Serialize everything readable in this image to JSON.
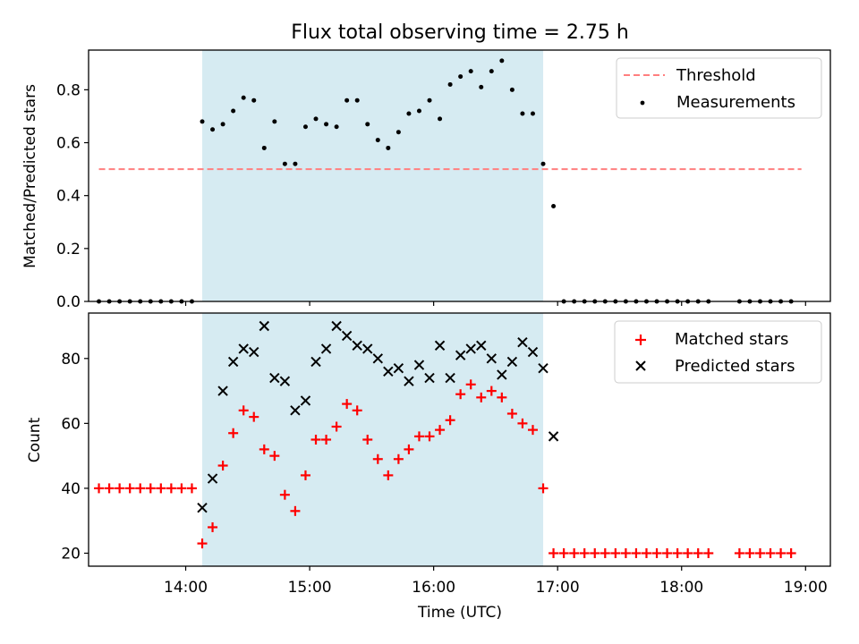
{
  "figure": {
    "title": "Flux total observing time = 2.75 h",
    "xlabel": "Time (UTC)",
    "xtick_labels": [
      "14:00",
      "15:00",
      "16:00",
      "17:00",
      "18:00",
      "19:00"
    ]
  },
  "chart_data": [
    {
      "type": "scatter",
      "ylabel": "Matched/Predicted stars",
      "xlim": [
        "13:13",
        "19:12"
      ],
      "ylim": [
        0,
        0.95
      ],
      "yticks": [
        0.0,
        0.2,
        0.4,
        0.6,
        0.8
      ],
      "ytick_labels": [
        "0.0",
        "0.2",
        "0.4",
        "0.6",
        "0.8"
      ],
      "xaxis_tick_labels_shown": false,
      "legend": "upper right",
      "shaded_interval": {
        "x": [
          "14:08",
          "16:53"
        ],
        "color": "#add8e6"
      },
      "threshold": {
        "name": "Threshold",
        "value": 0.5,
        "x": [
          "13:18",
          "18:58"
        ],
        "color": "#ff7f7f"
      },
      "series": [
        {
          "name": "Measurements",
          "marker": "dot",
          "color": "#000000",
          "x": [
            "13:18",
            "13:23",
            "13:28",
            "13:33",
            "13:38",
            "13:43",
            "13:48",
            "13:53",
            "13:58",
            "14:03",
            "14:08",
            "14:13",
            "14:18",
            "14:23",
            "14:28",
            "14:33",
            "14:38",
            "14:43",
            "14:48",
            "14:53",
            "14:58",
            "15:03",
            "15:08",
            "15:13",
            "15:18",
            "15:23",
            "15:28",
            "15:33",
            "15:38",
            "15:43",
            "15:48",
            "15:53",
            "15:58",
            "16:03",
            "16:08",
            "16:13",
            "16:18",
            "16:23",
            "16:28",
            "16:33",
            "16:38",
            "16:43",
            "16:48",
            "16:53",
            "16:58",
            "17:03",
            "17:08",
            "17:13",
            "17:18",
            "17:23",
            "17:28",
            "17:33",
            "17:38",
            "17:43",
            "17:48",
            "17:53",
            "17:58",
            "18:03",
            "18:08",
            "18:13",
            "18:28",
            "18:33",
            "18:38",
            "18:43",
            "18:48",
            "18:53"
          ],
          "y": [
            0,
            0,
            0,
            0,
            0,
            0,
            0,
            0,
            0,
            0,
            0.68,
            0.65,
            0.67,
            0.72,
            0.77,
            0.76,
            0.58,
            0.68,
            0.52,
            0.52,
            0.66,
            0.69,
            0.67,
            0.66,
            0.76,
            0.76,
            0.67,
            0.61,
            0.58,
            0.64,
            0.71,
            0.72,
            0.76,
            0.69,
            0.82,
            0.85,
            0.87,
            0.81,
            0.87,
            0.91,
            0.8,
            0.71,
            0.71,
            0.52,
            0.36,
            0,
            0,
            0,
            0,
            0,
            0,
            0,
            0,
            0,
            0,
            0,
            0,
            0,
            0,
            0,
            0,
            0,
            0,
            0,
            0,
            0
          ]
        }
      ]
    },
    {
      "type": "scatter",
      "ylabel": "Count",
      "xlabel": "Time (UTC)",
      "xlim": [
        "13:13",
        "19:12"
      ],
      "ylim": [
        16,
        94
      ],
      "yticks": [
        20,
        40,
        60,
        80
      ],
      "ytick_labels": [
        "20",
        "40",
        "60",
        "80"
      ],
      "legend": "upper right",
      "shaded_interval": {
        "x": [
          "14:08",
          "16:53"
        ],
        "color": "#add8e6"
      },
      "series": [
        {
          "name": "Matched stars",
          "marker": "plus",
          "color": "#ff0000",
          "x": [
            "13:18",
            "13:23",
            "13:28",
            "13:33",
            "13:38",
            "13:43",
            "13:48",
            "13:53",
            "13:58",
            "14:03",
            "14:08",
            "14:13",
            "14:18",
            "14:23",
            "14:28",
            "14:33",
            "14:38",
            "14:43",
            "14:48",
            "14:53",
            "14:58",
            "15:03",
            "15:08",
            "15:13",
            "15:18",
            "15:23",
            "15:28",
            "15:33",
            "15:38",
            "15:43",
            "15:48",
            "15:53",
            "15:58",
            "16:03",
            "16:08",
            "16:13",
            "16:18",
            "16:23",
            "16:28",
            "16:33",
            "16:38",
            "16:43",
            "16:48",
            "16:53",
            "16:58",
            "17:03",
            "17:08",
            "17:13",
            "17:18",
            "17:23",
            "17:28",
            "17:33",
            "17:38",
            "17:43",
            "17:48",
            "17:53",
            "17:58",
            "18:03",
            "18:08",
            "18:13",
            "18:28",
            "18:33",
            "18:38",
            "18:43",
            "18:48",
            "18:53"
          ],
          "y": [
            40,
            40,
            40,
            40,
            40,
            40,
            40,
            40,
            40,
            40,
            23,
            28,
            47,
            57,
            64,
            62,
            52,
            50,
            38,
            33,
            44,
            55,
            55,
            59,
            66,
            64,
            55,
            49,
            44,
            49,
            52,
            56,
            56,
            58,
            61,
            69,
            72,
            68,
            70,
            68,
            63,
            60,
            58,
            40,
            20,
            20,
            20,
            20,
            20,
            20,
            20,
            20,
            20,
            20,
            20,
            20,
            20,
            20,
            20,
            20,
            20,
            20,
            20,
            20,
            20,
            20
          ]
        },
        {
          "name": "Predicted stars",
          "marker": "x",
          "color": "#000000",
          "x": [
            "14:08",
            "14:13",
            "14:18",
            "14:23",
            "14:28",
            "14:33",
            "14:38",
            "14:43",
            "14:48",
            "14:53",
            "14:58",
            "15:03",
            "15:08",
            "15:13",
            "15:18",
            "15:23",
            "15:28",
            "15:33",
            "15:38",
            "15:43",
            "15:48",
            "15:53",
            "15:58",
            "16:03",
            "16:08",
            "16:13",
            "16:18",
            "16:23",
            "16:28",
            "16:33",
            "16:38",
            "16:43",
            "16:48",
            "16:53",
            "16:58"
          ],
          "y": [
            34,
            43,
            70,
            79,
            83,
            82,
            90,
            74,
            73,
            64,
            67,
            79,
            83,
            90,
            87,
            84,
            83,
            80,
            76,
            77,
            73,
            78,
            74,
            84,
            74,
            81,
            83,
            84,
            80,
            75,
            79,
            85,
            82,
            77,
            56
          ]
        }
      ]
    }
  ]
}
